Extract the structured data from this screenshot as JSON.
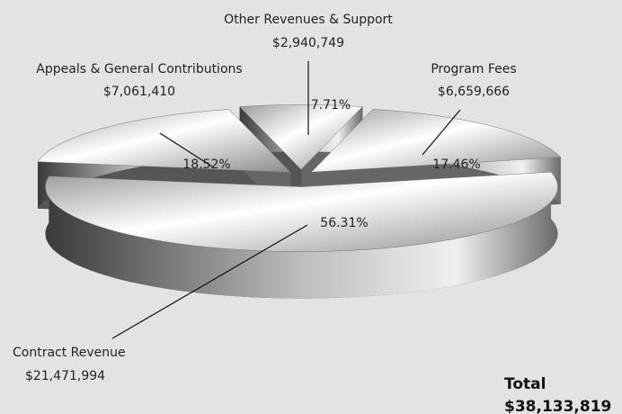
{
  "chart_data": {
    "type": "pie",
    "categories": [
      "Appeals & General Contributions",
      "Other Revenues & Support",
      "Program Fees",
      "Contract Revenue"
    ],
    "values": [
      18.52,
      7.71,
      17.46,
      56.31
    ],
    "value_labels": [
      "18.52%",
      "7.71%",
      "17.46%",
      "56.31%"
    ],
    "amounts": [
      "$7,061,410",
      "$2,940,749",
      "$6,659,666",
      "$21,471,994"
    ],
    "total_label": "Total",
    "total": "$38,133,819"
  }
}
